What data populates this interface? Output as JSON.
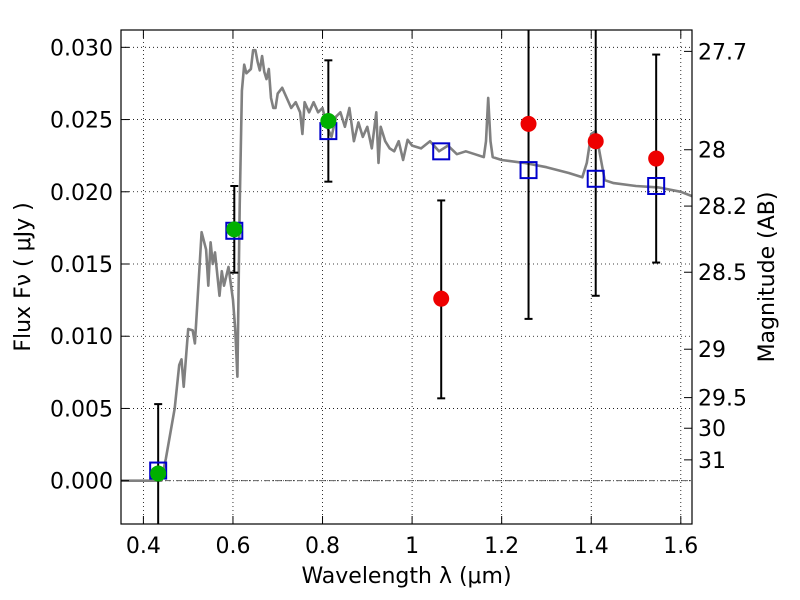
{
  "chart_data": {
    "type": "scatter",
    "xlabel": "Wavelength  λ (μm)",
    "ylabel": "Flux  Fν  ( μJy )",
    "ylabel_right": "Magnitude (AB)",
    "xlim": [
      0.35,
      1.625
    ],
    "ylim": [
      -0.003,
      0.0312
    ],
    "grid": true,
    "x_ticks": [
      {
        "value": 0.4,
        "label": "0.4"
      },
      {
        "value": 0.6,
        "label": "0.6"
      },
      {
        "value": 0.8,
        "label": "0.8"
      },
      {
        "value": 1.0,
        "label": "1"
      },
      {
        "value": 1.2,
        "label": "1.2"
      },
      {
        "value": 1.4,
        "label": "1.4"
      },
      {
        "value": 1.6,
        "label": "1.6"
      }
    ],
    "y_ticks": [
      {
        "value": 0.0,
        "label": "0.000"
      },
      {
        "value": 0.005,
        "label": "0.005"
      },
      {
        "value": 0.01,
        "label": "0.010"
      },
      {
        "value": 0.015,
        "label": "0.015"
      },
      {
        "value": 0.02,
        "label": "0.020"
      },
      {
        "value": 0.025,
        "label": "0.025"
      },
      {
        "value": 0.03,
        "label": "0.030"
      }
    ],
    "right_ticks": [
      {
        "flux": 0.02972,
        "label": "27.7"
      },
      {
        "flux": 0.02291,
        "label": "28"
      },
      {
        "flux": 0.01901,
        "label": "28.2"
      },
      {
        "flux": 0.01443,
        "label": "28.5"
      },
      {
        "flux": 0.0091,
        "label": "29"
      },
      {
        "flux": 0.00575,
        "label": "29.5"
      },
      {
        "flux": 0.00363,
        "label": "30"
      },
      {
        "flux": 0.00144,
        "label": "31"
      }
    ],
    "colors": {
      "spectrum": "#808080",
      "model": "#0000cc",
      "detected": "#00b000",
      "upper": "#ee0000",
      "errorbar": "#000000"
    },
    "spectrum": [
      [
        0.35,
        0.0
      ],
      [
        0.44,
        0.0
      ],
      [
        0.45,
        0.0015
      ],
      [
        0.47,
        0.005
      ],
      [
        0.48,
        0.008
      ],
      [
        0.485,
        0.0084
      ],
      [
        0.49,
        0.0065
      ],
      [
        0.5,
        0.0105
      ],
      [
        0.51,
        0.0104
      ],
      [
        0.515,
        0.0095
      ],
      [
        0.52,
        0.012
      ],
      [
        0.53,
        0.0172
      ],
      [
        0.54,
        0.016
      ],
      [
        0.545,
        0.0135
      ],
      [
        0.55,
        0.0165
      ],
      [
        0.555,
        0.015
      ],
      [
        0.56,
        0.0158
      ],
      [
        0.57,
        0.0128
      ],
      [
        0.575,
        0.0145
      ],
      [
        0.58,
        0.0135
      ],
      [
        0.59,
        0.0148
      ],
      [
        0.6,
        0.0125
      ],
      [
        0.605,
        0.0105
      ],
      [
        0.61,
        0.0072
      ],
      [
        0.615,
        0.019
      ],
      [
        0.62,
        0.027
      ],
      [
        0.625,
        0.0288
      ],
      [
        0.63,
        0.0282
      ],
      [
        0.64,
        0.0285
      ],
      [
        0.645,
        0.0298
      ],
      [
        0.65,
        0.0298
      ],
      [
        0.655,
        0.029
      ],
      [
        0.66,
        0.0284
      ],
      [
        0.665,
        0.0294
      ],
      [
        0.67,
        0.0283
      ],
      [
        0.675,
        0.0278
      ],
      [
        0.68,
        0.0285
      ],
      [
        0.685,
        0.0265
      ],
      [
        0.69,
        0.0258
      ],
      [
        0.695,
        0.0258
      ],
      [
        0.7,
        0.0268
      ],
      [
        0.71,
        0.0272
      ],
      [
        0.72,
        0.0265
      ],
      [
        0.73,
        0.0258
      ],
      [
        0.74,
        0.0262
      ],
      [
        0.75,
        0.0255
      ],
      [
        0.755,
        0.024
      ],
      [
        0.76,
        0.0262
      ],
      [
        0.77,
        0.0255
      ],
      [
        0.78,
        0.0262
      ],
      [
        0.79,
        0.0255
      ],
      [
        0.8,
        0.0258
      ],
      [
        0.81,
        0.0245
      ],
      [
        0.82,
        0.0238
      ],
      [
        0.83,
        0.0252
      ],
      [
        0.84,
        0.0255
      ],
      [
        0.85,
        0.0245
      ],
      [
        0.86,
        0.0258
      ],
      [
        0.87,
        0.0235
      ],
      [
        0.88,
        0.0248
      ],
      [
        0.89,
        0.0238
      ],
      [
        0.9,
        0.0245
      ],
      [
        0.91,
        0.023
      ],
      [
        0.92,
        0.0255
      ],
      [
        0.925,
        0.022
      ],
      [
        0.93,
        0.0245
      ],
      [
        0.94,
        0.0235
      ],
      [
        0.95,
        0.023
      ],
      [
        0.96,
        0.0228
      ],
      [
        0.97,
        0.0235
      ],
      [
        0.98,
        0.0222
      ],
      [
        0.99,
        0.0236
      ],
      [
        1.0,
        0.0232
      ],
      [
        1.02,
        0.023
      ],
      [
        1.04,
        0.0235
      ],
      [
        1.06,
        0.0228
      ],
      [
        1.08,
        0.0232
      ],
      [
        1.1,
        0.0226
      ],
      [
        1.12,
        0.0228
      ],
      [
        1.14,
        0.0226
      ],
      [
        1.16,
        0.0224
      ],
      [
        1.165,
        0.0235
      ],
      [
        1.17,
        0.0265
      ],
      [
        1.175,
        0.0235
      ],
      [
        1.18,
        0.0224
      ],
      [
        1.2,
        0.0222
      ],
      [
        1.25,
        0.022
      ],
      [
        1.3,
        0.0217
      ],
      [
        1.35,
        0.0213
      ],
      [
        1.38,
        0.021
      ],
      [
        1.39,
        0.022
      ],
      [
        1.4,
        0.024
      ],
      [
        1.41,
        0.0242
      ],
      [
        1.42,
        0.0225
      ],
      [
        1.43,
        0.0208
      ],
      [
        1.45,
        0.0206
      ],
      [
        1.5,
        0.0204
      ],
      [
        1.55,
        0.0203
      ],
      [
        1.6,
        0.02
      ],
      [
        1.625,
        0.0197
      ]
    ],
    "model_points": [
      {
        "x": 0.433,
        "y": 0.0007
      },
      {
        "x": 0.603,
        "y": 0.0173
      },
      {
        "x": 0.813,
        "y": 0.0242
      },
      {
        "x": 1.065,
        "y": 0.0228
      },
      {
        "x": 1.26,
        "y": 0.0215
      },
      {
        "x": 1.41,
        "y": 0.0209
      },
      {
        "x": 1.545,
        "y": 0.0204
      }
    ],
    "measurements": [
      {
        "x": 0.433,
        "y": 0.0005,
        "yerr_low": -0.0032,
        "yerr_high": 0.0053,
        "status": "detected"
      },
      {
        "x": 0.603,
        "y": 0.0174,
        "yerr_low": 0.0144,
        "yerr_high": 0.0204,
        "status": "detected"
      },
      {
        "x": 0.813,
        "y": 0.0249,
        "yerr_low": 0.0207,
        "yerr_high": 0.0291,
        "status": "detected"
      },
      {
        "x": 1.065,
        "y": 0.0126,
        "yerr_low": 0.0057,
        "yerr_high": 0.0194,
        "status": "upper"
      },
      {
        "x": 1.26,
        "y": 0.0247,
        "yerr_low": 0.0112,
        "yerr_high": 0.0312,
        "status": "upper"
      },
      {
        "x": 1.41,
        "y": 0.0235,
        "yerr_low": 0.0128,
        "yerr_high": 0.0312,
        "status": "upper"
      },
      {
        "x": 1.545,
        "y": 0.0223,
        "yerr_low": 0.0151,
        "yerr_high": 0.0295,
        "status": "upper"
      }
    ]
  }
}
